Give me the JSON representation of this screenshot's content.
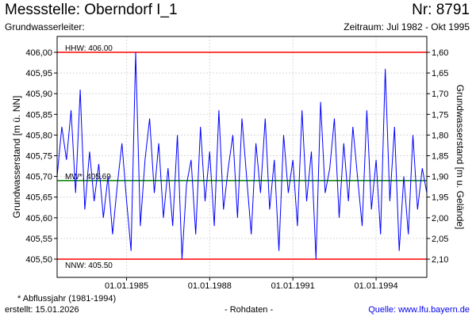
{
  "header": {
    "title": "Messstelle: Oberndorf I_1",
    "number": "Nr: 8791",
    "aquifer": "Grundwasserleiter:",
    "period": "Zeitraum: Jul 1982 - Okt 1995"
  },
  "footer": {
    "footnote": "* Abflussjahr (1981-1994)",
    "created": "erstellt:  15.01.2026",
    "rawdata": "- Rohdaten -",
    "source": "Quelle: www.lfu.bayern.de"
  },
  "colors": {
    "series": "#0000ff",
    "extremes": "#ff0000",
    "mean": "#008000",
    "grid": "#d8d8d8",
    "axis": "#000000"
  },
  "chart_data": {
    "type": "line",
    "ylabel_left": "Grundwasserstand [m ü. NN]",
    "ylabel_right": "Grundwasserstand [m u. Gelände]",
    "ylim": [
      405.5,
      406.0
    ],
    "ylim_right": [
      2.1,
      1.6
    ],
    "xlim": [
      "1982-07-01",
      "1995-10-31"
    ],
    "y_ticks_left": [
      "406,00",
      "405,95",
      "405,90",
      "405,85",
      "405,80",
      "405,75",
      "405,70",
      "405,65",
      "405,60",
      "405,55",
      "405,50"
    ],
    "y_ticks_right": [
      "1,60",
      "1,65",
      "1,70",
      "1,75",
      "1,80",
      "1,85",
      "1,90",
      "1,95",
      "2,00",
      "2,05",
      "2,10"
    ],
    "x_ticks": [
      {
        "label": "01.01.1985",
        "date": "1985-01-01"
      },
      {
        "label": "01.01.1988",
        "date": "1988-01-01"
      },
      {
        "label": "01.01.1991",
        "date": "1991-01-01"
      },
      {
        "label": "01.01.1994",
        "date": "1994-01-01"
      }
    ],
    "grid": true,
    "reference_lines": [
      {
        "label": "HHW: 406.00",
        "value": 406.0,
        "kind": "extreme"
      },
      {
        "label": "MW*: 405.69",
        "value": 405.69,
        "kind": "mean"
      },
      {
        "label": "NNW: 405.50",
        "value": 405.5,
        "kind": "extreme"
      }
    ],
    "series": [
      {
        "x": [
          "1982-07-01",
          "1982-09-01",
          "1982-11-01",
          "1983-01-01",
          "1983-03-01",
          "1983-05-01",
          "1983-07-01",
          "1983-09-01",
          "1983-11-01",
          "1984-01-01",
          "1984-03-01",
          "1984-05-01",
          "1984-07-01",
          "1984-09-01",
          "1984-11-01",
          "1985-01-01",
          "1985-03-01",
          "1985-05-01",
          "1985-07-01",
          "1985-09-01",
          "1985-11-01",
          "1986-01-01",
          "1986-03-01",
          "1986-05-01",
          "1986-07-01",
          "1986-09-01",
          "1986-11-01",
          "1987-01-01",
          "1987-03-01",
          "1987-05-01",
          "1987-07-01",
          "1987-09-01",
          "1987-11-01",
          "1988-01-01",
          "1988-03-01",
          "1988-05-01",
          "1988-07-01",
          "1988-09-01",
          "1988-11-01",
          "1989-01-01",
          "1989-03-01",
          "1989-05-01",
          "1989-07-01",
          "1989-09-01",
          "1989-11-01",
          "1990-01-01",
          "1990-03-01",
          "1990-05-01",
          "1990-07-01",
          "1990-09-01",
          "1990-11-01",
          "1991-01-01",
          "1991-03-01",
          "1991-05-01",
          "1991-07-01",
          "1991-09-01",
          "1991-11-01",
          "1992-01-01",
          "1992-03-01",
          "1992-05-01",
          "1992-07-01",
          "1992-09-01",
          "1992-11-01",
          "1993-01-01",
          "1993-03-01",
          "1993-05-01",
          "1993-07-01",
          "1993-09-01",
          "1993-11-01",
          "1994-01-01",
          "1994-03-01",
          "1994-05-01",
          "1994-07-01",
          "1994-09-01",
          "1994-11-01",
          "1995-01-01",
          "1995-03-01",
          "1995-05-01",
          "1995-07-01",
          "1995-09-01",
          "1995-10-31"
        ],
        "values": [
          405.7,
          405.82,
          405.74,
          405.86,
          405.66,
          405.91,
          405.62,
          405.76,
          405.64,
          405.73,
          405.6,
          405.7,
          405.56,
          405.68,
          405.78,
          405.64,
          405.52,
          406.0,
          405.58,
          405.74,
          405.84,
          405.66,
          405.78,
          405.6,
          405.72,
          405.58,
          405.8,
          405.5,
          405.68,
          405.74,
          405.56,
          405.82,
          405.64,
          405.76,
          405.58,
          405.86,
          405.62,
          405.72,
          405.8,
          405.6,
          405.84,
          405.7,
          405.56,
          405.78,
          405.66,
          405.84,
          405.62,
          405.74,
          405.52,
          405.8,
          405.66,
          405.74,
          405.58,
          405.86,
          405.64,
          405.76,
          405.5,
          405.88,
          405.66,
          405.72,
          405.84,
          405.6,
          405.78,
          405.64,
          405.82,
          405.7,
          405.58,
          405.86,
          405.62,
          405.74,
          405.56,
          405.96,
          405.64,
          405.82,
          405.52,
          405.7,
          405.56,
          405.8,
          405.62,
          405.72,
          405.66
        ]
      }
    ]
  }
}
